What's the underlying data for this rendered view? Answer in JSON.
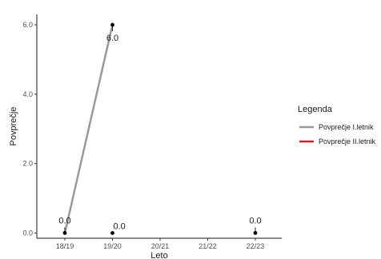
{
  "chart_data": {
    "type": "line",
    "xlabel": "Leto",
    "ylabel": "Povprečje",
    "categories": [
      "18/19",
      "19/20",
      "20/21",
      "21/22",
      "22/23"
    ],
    "ylim": [
      -0.15,
      6.3
    ],
    "yticks": [
      0,
      2,
      4,
      6
    ],
    "ytick_labels": [
      "0.0",
      "2.0",
      "4.0",
      "6.0"
    ],
    "grid": false,
    "legend": {
      "title": "Legenda",
      "placement": "right",
      "entries": [
        {
          "name": "Povprečje I.letnik",
          "color": "#999999"
        },
        {
          "name": "Povprečje II.letnik",
          "color": "#e41a1c"
        }
      ]
    },
    "series": [
      {
        "name": "Povprečje I.letnik",
        "color": "#999999",
        "x": [
          "18/19",
          "19/20"
        ],
        "values": [
          0.0,
          6.0
        ]
      },
      {
        "name": "Povprečje II.letnik",
        "color": "#e41a1c",
        "x": [],
        "values": []
      }
    ],
    "points": [
      {
        "x": "18/19",
        "y": 0.0
      },
      {
        "x": "19/20",
        "y": 6.0
      },
      {
        "x": "19/20",
        "y": 0.0
      },
      {
        "x": "22/23",
        "y": 0.0
      }
    ],
    "data_labels": [
      {
        "x": "18/19",
        "y": 0.0,
        "text": "0.0",
        "pos": "above"
      },
      {
        "x": "19/20",
        "y": 6.0,
        "text": "6.0",
        "pos": "below"
      },
      {
        "x": "19/20",
        "y": 0.0,
        "text": "0.0",
        "pos": "right"
      },
      {
        "x": "22/23",
        "y": 0.0,
        "text": "0.0",
        "pos": "above"
      }
    ]
  }
}
